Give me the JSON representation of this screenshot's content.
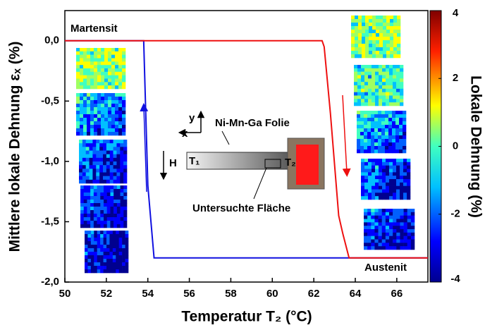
{
  "chart_data": {
    "type": "line",
    "x_label": "Temperatur T₂ (°C)",
    "y_label": "Mittlere lokale Dehnung εₓ (%)",
    "xlim": [
      50,
      67.5
    ],
    "ylim": [
      -2.0,
      0.25
    ],
    "xticks": [
      50,
      52,
      54,
      56,
      58,
      60,
      62,
      64,
      66
    ],
    "yticks": [
      {
        "value": 0.0,
        "label": "0,0"
      },
      {
        "value": -0.5,
        "label": "-0,5"
      },
      {
        "value": -1.0,
        "label": "-1,0"
      },
      {
        "value": -1.5,
        "label": "-1,5"
      },
      {
        "value": -2.0,
        "label": "-2,0"
      }
    ],
    "series": [
      {
        "color": "#1010e0",
        "x": [
          50,
          53.8,
          53.85,
          53.9,
          54.0,
          54.1,
          54.3,
          67.5
        ],
        "values": [
          0,
          0,
          -0.3,
          -0.6,
          -1.2,
          -1.4,
          -1.8,
          -1.8
        ]
      },
      {
        "color": "#ee1010",
        "x": [
          50,
          62.4,
          62.5,
          62.8,
          63.2,
          63.4,
          63.7,
          67.5
        ],
        "values": [
          0,
          0,
          -0.05,
          -0.6,
          -1.45,
          -1.6,
          -1.8,
          -1.8
        ]
      }
    ],
    "annotations": {
      "martensite": "Martensit",
      "austenite": "Austenit",
      "foil": "Ni-Mn-Ga Folie",
      "area": "Untersuchte Fläche",
      "t1": "T₁",
      "t2": "T₂",
      "field": "H",
      "axis_x": "x",
      "axis_y": "y"
    },
    "colorbar": {
      "label": "Lokale Dehnung (%)",
      "lim": [
        -4,
        4
      ],
      "ticks": [
        4,
        2,
        0,
        -2,
        -4
      ]
    }
  }
}
